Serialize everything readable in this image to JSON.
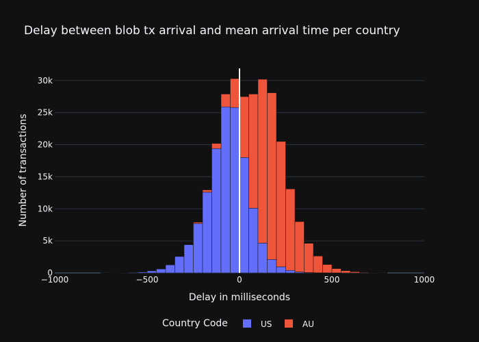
{
  "chart_data": {
    "type": "bar",
    "mode": "stacked-histogram",
    "title": "Delay between blob tx arrival and mean arrival time per country",
    "xlabel": "Delay in milliseconds",
    "ylabel": "Number of transactions",
    "xlim": [
      -1000,
      1000
    ],
    "ylim": [
      0,
      31900
    ],
    "bin_width": 50,
    "x_ticks": [
      -1000,
      -500,
      0,
      500,
      1000
    ],
    "x_tick_labels": [
      "−1000",
      "−500",
      "0",
      "500",
      "1000"
    ],
    "y_ticks": [
      0,
      5000,
      10000,
      15000,
      20000,
      25000,
      30000
    ],
    "y_tick_labels": [
      "0",
      "5k",
      "10k",
      "15k",
      "20k",
      "25k",
      "30k"
    ],
    "grid": true,
    "vline_x": 0,
    "legend": {
      "title": "Country Code",
      "position": "bottom"
    },
    "bin_starts": [
      -750,
      -700,
      -650,
      -600,
      -550,
      -500,
      -450,
      -400,
      -350,
      -300,
      -250,
      -200,
      -150,
      -100,
      -50,
      0,
      50,
      100,
      150,
      200,
      250,
      300,
      350,
      400,
      450,
      500,
      550,
      600,
      650,
      700,
      750
    ],
    "series": [
      {
        "name": "US",
        "color": "#636efa",
        "values": [
          10,
          20,
          40,
          80,
          140,
          320,
          610,
          1250,
          2560,
          4400,
          7700,
          12600,
          19400,
          25900,
          25800,
          18000,
          10100,
          4660,
          2100,
          960,
          400,
          150,
          60,
          20,
          10,
          5,
          0,
          0,
          0,
          0,
          0
        ]
      },
      {
        "name": "AU",
        "color": "#ef553b",
        "values": [
          0,
          0,
          0,
          0,
          0,
          0,
          0,
          0,
          0,
          50,
          200,
          350,
          800,
          2000,
          4500,
          9500,
          17800,
          25540,
          26000,
          19540,
          12700,
          7850,
          4560,
          2610,
          1300,
          665,
          350,
          180,
          80,
          40,
          15
        ]
      }
    ]
  },
  "colors": {
    "background": "#111111",
    "grid": "#283442",
    "text": "#f2f5fa",
    "vline": "#ffffff"
  }
}
